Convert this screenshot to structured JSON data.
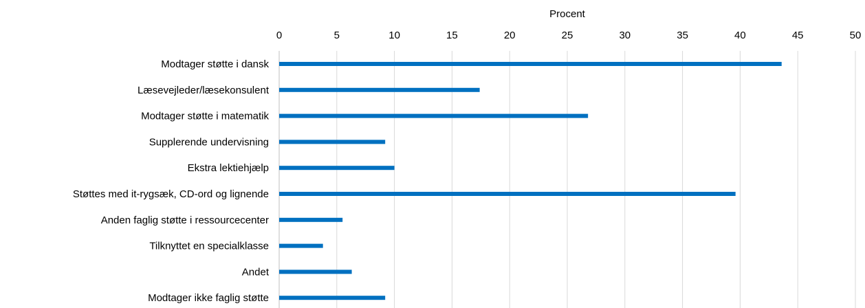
{
  "chart_data": {
    "type": "bar",
    "orientation": "horizontal",
    "title": "",
    "xlabel": "Procent",
    "ylabel": "",
    "xlim": [
      0,
      50
    ],
    "x_ticks": [
      "0",
      "5",
      "10",
      "15",
      "20",
      "25",
      "30",
      "35",
      "40",
      "45",
      "50"
    ],
    "x_axis_position": "top",
    "grid": true,
    "legend": "none",
    "bar_color": "#0070c0",
    "categories": [
      "Modtager støtte i dansk",
      "Læsevejleder/læsekonsulent",
      "Modtager støtte i matematik",
      "Supplerende undervisning",
      "Ekstra lektiehjælp",
      "Støttes med it-rygsæk, CD-ord og lignende",
      "Anden faglig støtte i ressourcecenter",
      "Tilknyttet en specialklasse",
      "Andet",
      "Modtager ikke faglig støtte"
    ],
    "values": [
      43.6,
      17.4,
      26.8,
      9.2,
      10.0,
      39.6,
      5.5,
      3.8,
      6.3,
      9.2
    ]
  }
}
